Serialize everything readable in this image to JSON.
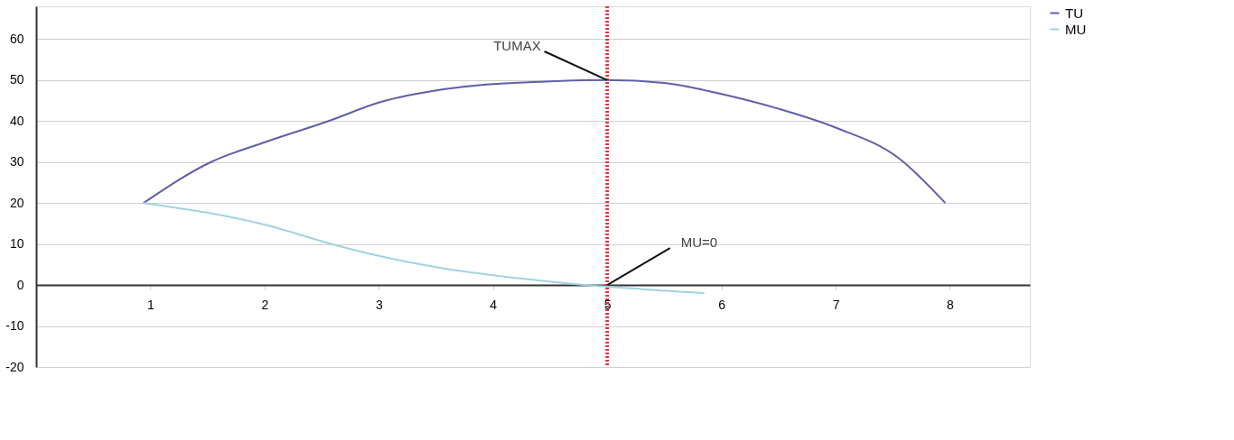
{
  "chart_data": {
    "type": "line",
    "xlim": [
      0,
      8.7
    ],
    "xticks": [
      1,
      2,
      3,
      4,
      5,
      6,
      7,
      8
    ],
    "ylim": [
      -20,
      68
    ],
    "yticks": [
      -20,
      -10,
      0,
      10,
      20,
      30,
      40,
      50,
      60
    ],
    "grid": "y",
    "legend": "right",
    "line_style": "solid",
    "marker": "none",
    "series": [
      {
        "name": "TU",
        "color": "#5f5fa8",
        "x": [
          0.94,
          1.53,
          2.02,
          2.56,
          3.0,
          3.58,
          4.0,
          4.5,
          5.0,
          5.5,
          6.0,
          6.5,
          7.0,
          7.55,
          7.96
        ],
        "values": [
          20,
          30,
          35,
          40,
          44.5,
          47.8,
          49,
          49.7,
          50,
          49.3,
          46.6,
          43,
          38.4,
          31,
          20
        ]
      },
      {
        "name": "MU",
        "color": "#9fd3e0",
        "x": [
          0.94,
          2.02,
          2.56,
          3.0,
          3.58,
          4.0,
          4.4,
          4.8,
          5.3,
          5.85
        ],
        "values": [
          20,
          14.6,
          10.2,
          7.1,
          4,
          2.4,
          1.1,
          0,
          -1,
          -2
        ]
      }
    ],
    "ref_lines": [
      {
        "axis": "x",
        "value": 5,
        "color": "#e0303c",
        "line_style": "dotted"
      }
    ],
    "annotations": [
      {
        "text": "TUMAX",
        "x": 5,
        "y": 50
      },
      {
        "text": "MU=0",
        "x": 5,
        "y": 0
      }
    ]
  }
}
